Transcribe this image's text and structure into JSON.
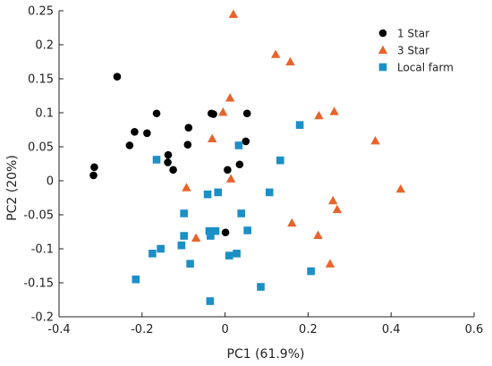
{
  "chart_data": {
    "type": "scatter",
    "xlabel": "PC1 (61.9%)",
    "ylabel": "PC2 (20%)",
    "xlim": [
      -0.4,
      0.6
    ],
    "ylim": [
      -0.2,
      0.25
    ],
    "xticks": [
      -0.4,
      -0.2,
      0,
      0.2,
      0.4,
      0.6
    ],
    "xtick_labels": [
      "-0.4",
      "-0.2",
      "0",
      "0.2",
      "0.4",
      "0.6"
    ],
    "yticks": [
      -0.2,
      -0.15,
      -0.1,
      -0.05,
      0,
      0.05,
      0.1,
      0.15,
      0.2,
      0.25
    ],
    "ytick_labels": [
      "-0.2",
      "-0.15",
      "-0.1",
      "-0.05",
      "0",
      "0.05",
      "0.1",
      "0.15",
      "0.2",
      "0.25"
    ],
    "grid": false,
    "legend_position": "top-right",
    "series": [
      {
        "name": "1 Star",
        "marker": "circle",
        "color": "#000000",
        "points": [
          [
            -0.26,
            0.153
          ],
          [
            -0.315,
            0.02
          ],
          [
            -0.317,
            0.008
          ],
          [
            -0.218,
            0.072
          ],
          [
            -0.23,
            0.052
          ],
          [
            -0.188,
            0.07
          ],
          [
            -0.165,
            0.099
          ],
          [
            -0.137,
            0.038
          ],
          [
            -0.138,
            0.027
          ],
          [
            -0.125,
            0.016
          ],
          [
            -0.088,
            0.078
          ],
          [
            -0.09,
            0.053
          ],
          [
            -0.033,
            0.099
          ],
          [
            -0.028,
            0.098
          ],
          [
            0.053,
            0.099
          ],
          [
            0.05,
            0.058
          ],
          [
            0.035,
            0.024
          ],
          [
            0.006,
            0.016
          ],
          [
            0.001,
            -0.076
          ]
        ]
      },
      {
        "name": "3 Star",
        "marker": "triangle",
        "color": "#e8632b",
        "points": [
          [
            0.02,
            0.245
          ],
          [
            0.122,
            0.186
          ],
          [
            0.157,
            0.175
          ],
          [
            0.012,
            0.122
          ],
          [
            -0.005,
            0.101
          ],
          [
            0.226,
            0.096
          ],
          [
            0.263,
            0.102
          ],
          [
            -0.031,
            0.062
          ],
          [
            0.362,
            0.059
          ],
          [
            0.014,
            0.003
          ],
          [
            -0.093,
            -0.01
          ],
          [
            0.423,
            -0.012
          ],
          [
            0.26,
            -0.029
          ],
          [
            0.27,
            -0.042
          ],
          [
            0.161,
            -0.062
          ],
          [
            0.224,
            -0.08
          ],
          [
            -0.07,
            -0.084
          ],
          [
            0.253,
            -0.122
          ]
        ]
      },
      {
        "name": "Local farm",
        "marker": "square",
        "color": "#1c8fc6",
        "points": [
          [
            0.033,
            0.052
          ],
          [
            0.18,
            0.082
          ],
          [
            -0.165,
            0.031
          ],
          [
            0.133,
            0.03
          ],
          [
            -0.042,
            -0.02
          ],
          [
            -0.017,
            -0.017
          ],
          [
            0.107,
            -0.017
          ],
          [
            -0.099,
            -0.048
          ],
          [
            0.039,
            -0.048
          ],
          [
            -0.038,
            -0.074
          ],
          [
            -0.035,
            -0.081
          ],
          [
            0.054,
            -0.073
          ],
          [
            -0.099,
            -0.081
          ],
          [
            -0.105,
            -0.095
          ],
          [
            -0.023,
            -0.074
          ],
          [
            -0.155,
            -0.1
          ],
          [
            -0.175,
            -0.107
          ],
          [
            0.01,
            -0.11
          ],
          [
            0.028,
            -0.107
          ],
          [
            -0.084,
            -0.122
          ],
          [
            -0.215,
            -0.145
          ],
          [
            0.207,
            -0.133
          ],
          [
            0.086,
            -0.156
          ],
          [
            -0.036,
            -0.177
          ]
        ]
      }
    ]
  }
}
